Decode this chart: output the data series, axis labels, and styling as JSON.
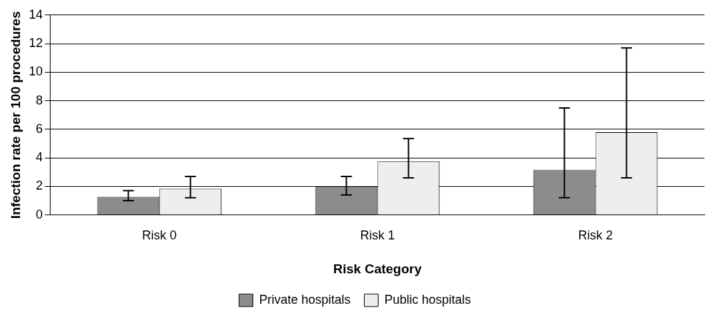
{
  "chart_data": {
    "type": "bar",
    "xlabel": "Risk Category",
    "ylabel": "Infection rate per 100 procedures",
    "categories": [
      "Risk 0",
      "Risk 1",
      "Risk 2"
    ],
    "series": [
      {
        "name": "Private hospitals",
        "color": "#8c8c8c",
        "values": [
          1.27,
          1.95,
          3.15
        ],
        "errors": [
          [
            1.0,
            1.7
          ],
          [
            1.4,
            2.7
          ],
          [
            1.2,
            7.5
          ]
        ]
      },
      {
        "name": "Public hospitals",
        "color": "#eeeeee",
        "values": [
          1.85,
          3.75,
          5.8
        ],
        "errors": [
          [
            1.2,
            2.7
          ],
          [
            2.6,
            5.35
          ],
          [
            2.6,
            11.7
          ]
        ]
      }
    ],
    "ylim": [
      0,
      14
    ],
    "yticks": [
      0,
      2,
      4,
      6,
      8,
      10,
      12,
      14
    ],
    "grid": "y",
    "legend": "bottom"
  }
}
